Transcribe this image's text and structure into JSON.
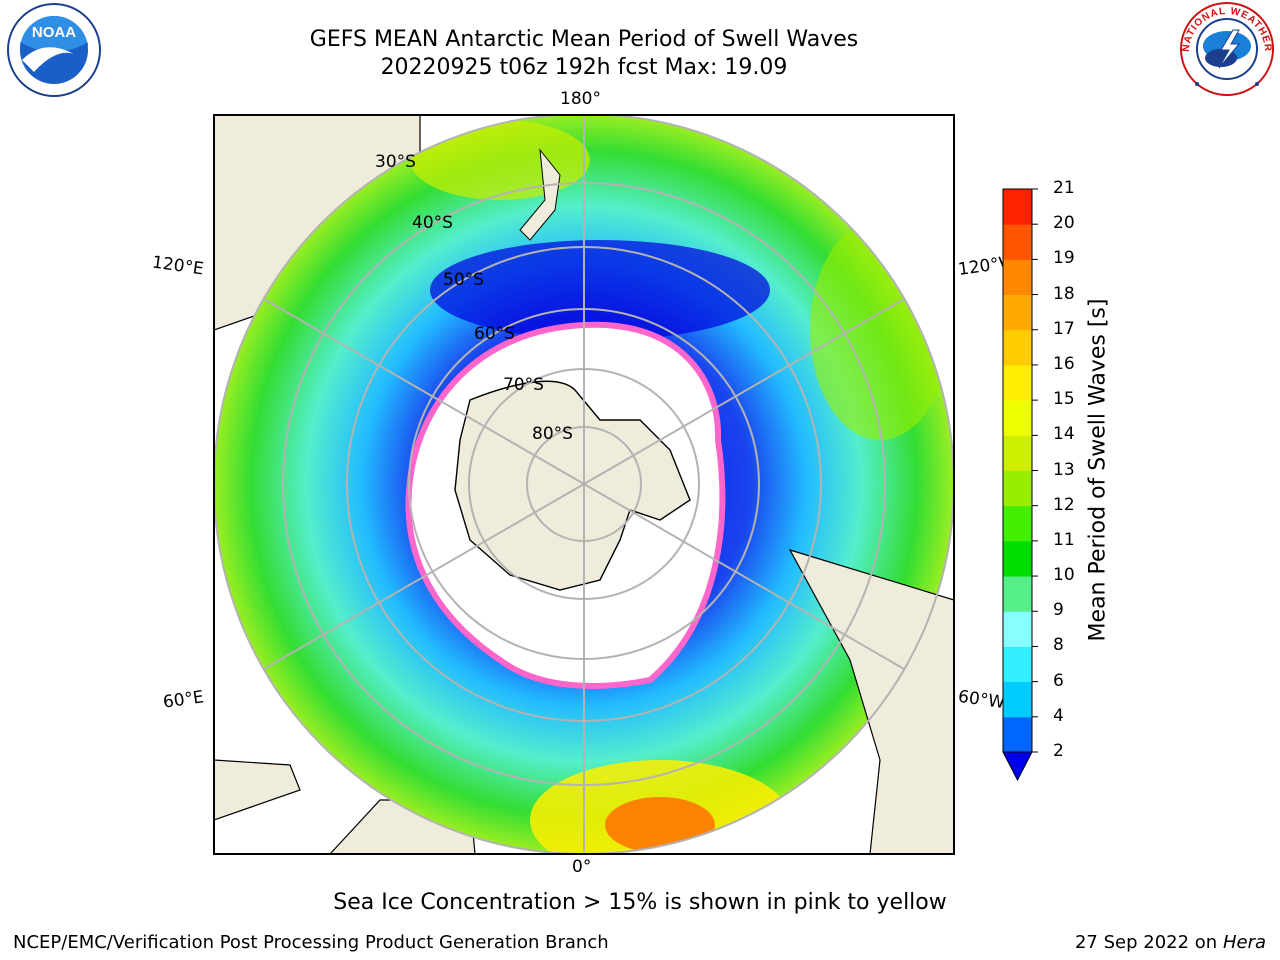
{
  "title_line1": "GEFS MEAN Antarctic Mean Period of Swell Waves",
  "title_line2": "20220925 t06z 192h fcst   Max: 19.09",
  "map": {
    "longitude_labels": [
      "180°",
      "120°E",
      "120°W",
      "60°E",
      "60°W",
      "0°"
    ],
    "latitude_labels": [
      "30°S",
      "40°S",
      "50°S",
      "60°S",
      "70°S",
      "80°S"
    ],
    "land_color": "#efecdc",
    "sea_ice_colors": [
      "#ff66cc",
      "#ffaa33",
      "#ffd24d"
    ]
  },
  "colorbar": {
    "label": "Mean Period of Swell Waves [s]",
    "ticks": [
      "2",
      "4",
      "6",
      "8",
      "9",
      "10",
      "11",
      "12",
      "13",
      "14",
      "15",
      "16",
      "17",
      "18",
      "19",
      "20",
      "21"
    ],
    "colors": [
      "#0066ff",
      "#00ccff",
      "#33eeff",
      "#88ffff",
      "#55ee88",
      "#00dd00",
      "#44ee00",
      "#99ee00",
      "#ccee00",
      "#eeff00",
      "#ffee00",
      "#ffcc00",
      "#ffaa00",
      "#ff8800",
      "#ff5500",
      "#ff2200"
    ],
    "under_color": "#0000ee"
  },
  "note": "Sea Ice Concentration > 15% is shown in pink to yellow",
  "footer_left": "NCEP/EMC/Verification Post Processing Product Generation Branch",
  "footer_date": "27 Sep 2022 on",
  "footer_machine": "Hera",
  "logos": {
    "noaa_text": "NOAA",
    "nws_text": "NATIONAL WEATHER SERVICE"
  }
}
